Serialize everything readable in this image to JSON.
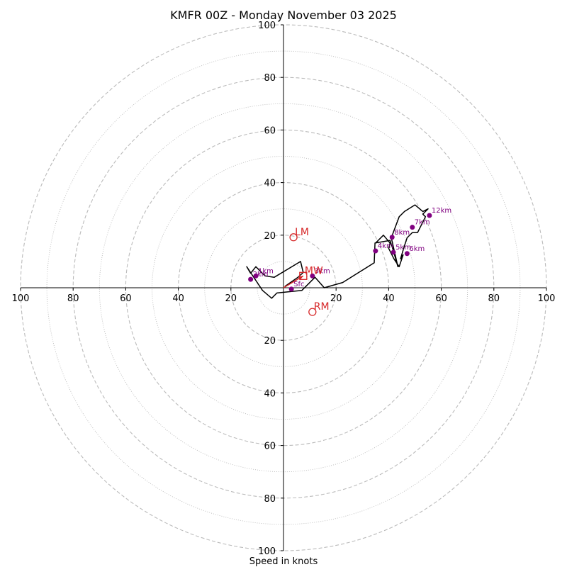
{
  "chart_data": {
    "type": "scatter",
    "subtype": "hodograph",
    "title": "KMFR 00Z - Monday November 03 2025",
    "xlabel": "Speed in knots",
    "units": "knots",
    "max_speed": 100,
    "ring_step_major": 20,
    "ring_step_minor": 10,
    "tick_values": [
      20,
      40,
      60,
      80,
      100
    ],
    "colors": {
      "trace": "#000000",
      "height_points": "#800080",
      "motion": "#d62728",
      "grid": "#bbbbbb"
    },
    "trace": [
      [
        0.5,
        0.5
      ],
      [
        5.5,
        4.0
      ],
      [
        7.5,
        5.8
      ],
      [
        6.5,
        10.0
      ],
      [
        -3.5,
        4.0
      ],
      [
        -7.0,
        4.5
      ],
      [
        -10.5,
        8.0
      ],
      [
        -12.5,
        5.5
      ],
      [
        -14.0,
        8.0
      ],
      [
        -11.0,
        3.5
      ],
      [
        -8.0,
        -1.0
      ],
      [
        -4.5,
        -4.0
      ],
      [
        -2.5,
        -2.0
      ],
      [
        7.0,
        -1.0
      ],
      [
        12.0,
        4.0
      ],
      [
        15.5,
        0.0
      ],
      [
        22.5,
        2.0
      ],
      [
        34.5,
        9.5
      ],
      [
        34.8,
        17.0
      ],
      [
        40.5,
        18.0
      ],
      [
        41.5,
        15.0
      ],
      [
        43.5,
        8.0
      ],
      [
        41.0,
        19.0
      ],
      [
        44.0,
        27.0
      ],
      [
        46.0,
        29.0
      ],
      [
        50.0,
        31.5
      ],
      [
        53.0,
        29.0
      ],
      [
        55.0,
        30.0
      ],
      [
        54.0,
        29.0
      ],
      [
        53.0,
        28.0
      ],
      [
        54.0,
        27.0
      ],
      [
        51.0,
        21.0
      ],
      [
        49.0,
        21.0
      ],
      [
        47.0,
        19.0
      ],
      [
        46.0,
        16.0
      ],
      [
        44.5,
        11.0
      ],
      [
        45.5,
        12.5
      ],
      [
        44.0,
        8.0
      ],
      [
        42.0,
        11.0
      ],
      [
        40.0,
        15.0
      ],
      [
        40.5,
        17.0
      ],
      [
        38.0,
        20.0
      ],
      [
        35.0,
        17.0
      ]
    ],
    "height_points": [
      {
        "label": "Sfc",
        "u": 3.0,
        "v": -0.5
      },
      {
        "label": "1km",
        "u": -10.5,
        "v": 4.5
      },
      {
        "label": "2km",
        "u": -12.5,
        "v": 3.2
      },
      {
        "label": "3km",
        "u": 11.0,
        "v": 4.5
      },
      {
        "label": "4km",
        "u": 35.0,
        "v": 14.0
      },
      {
        "label": "5km",
        "u": 41.8,
        "v": 13.5
      },
      {
        "label": "6km",
        "u": 47.0,
        "v": 13.0
      },
      {
        "label": "7km",
        "u": 49.0,
        "v": 23.0
      },
      {
        "label": "8km",
        "u": 41.3,
        "v": 19.2
      },
      {
        "label": "12km",
        "u": 55.5,
        "v": 27.5
      }
    ],
    "motion_vectors": [
      {
        "label": "LM",
        "u": 3.8,
        "v": 19.2,
        "marker": "circle"
      },
      {
        "label": "MW",
        "u": 7.5,
        "v": 4.5,
        "marker": "square"
      },
      {
        "label": "RM",
        "u": 11.0,
        "v": -9.2,
        "marker": "circle"
      }
    ],
    "shear_arrow": {
      "from": [
        0,
        0
      ],
      "to": [
        7.5,
        4.5
      ]
    }
  }
}
